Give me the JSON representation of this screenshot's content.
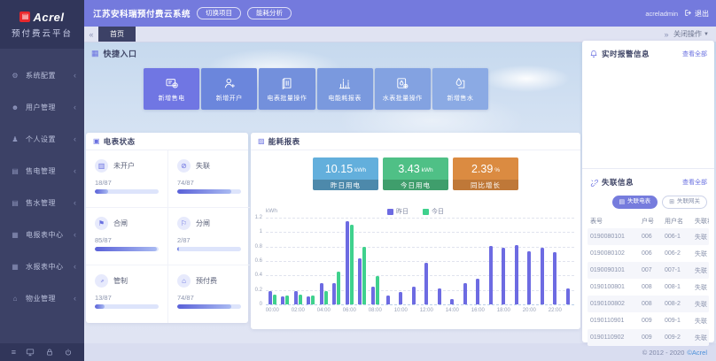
{
  "brand": {
    "logo_text": "Acrel",
    "platform_name": "预付费云平台",
    "logo_color": "#e8282d"
  },
  "header": {
    "system_title": "江苏安科瑞预付费云系统",
    "buttons": [
      {
        "label": "切换项目"
      },
      {
        "label": "能耗分析"
      }
    ],
    "username": "acreladmin",
    "logout_label": "退出"
  },
  "tabs": {
    "active": "首页",
    "right_action": "关闭操作"
  },
  "sidebar": {
    "items": [
      {
        "label": "系统配置",
        "icon": "gear-icon"
      },
      {
        "label": "用户管理",
        "icon": "user-icon"
      },
      {
        "label": "个人设置",
        "icon": "person-icon"
      },
      {
        "label": "售电管理",
        "icon": "card-icon"
      },
      {
        "label": "售水管理",
        "icon": "card-icon"
      },
      {
        "label": "电报表中心",
        "icon": "grid-icon"
      },
      {
        "label": "水报表中心",
        "icon": "grid-icon"
      },
      {
        "label": "物业管理",
        "icon": "building-icon"
      }
    ]
  },
  "quick_entry": {
    "title": "快捷入口",
    "tiles": [
      {
        "label": "新增售电",
        "color": "#7076e3",
        "icon": "meter-plus-icon"
      },
      {
        "label": "新增开户",
        "color": "#6b86dc",
        "icon": "user-plus-icon"
      },
      {
        "label": "电表批量操作",
        "color": "#7390dc",
        "icon": "meter-batch-icon"
      },
      {
        "label": "电能耗报表",
        "color": "#7a99de",
        "icon": "chart-bars-icon"
      },
      {
        "label": "水表批量操作",
        "color": "#83a2e1",
        "icon": "water-batch-icon"
      },
      {
        "label": "新增售水",
        "color": "#8baae4",
        "icon": "droplet-icon"
      }
    ]
  },
  "meter_status": {
    "title": "电表状态",
    "total": 87,
    "tiles": [
      {
        "label": "未开户",
        "value": 18,
        "display": "18/87",
        "icon": "meter-icon"
      },
      {
        "label": "失联",
        "value": 74,
        "display": "74/87",
        "icon": "offline-icon"
      },
      {
        "label": "合闸",
        "value": 85,
        "display": "85/87",
        "icon": "switch-on-icon"
      },
      {
        "label": "分闸",
        "value": 2,
        "display": "2/87",
        "icon": "switch-off-icon"
      },
      {
        "label": "管制",
        "value": 13,
        "display": "13/87",
        "icon": "key-icon"
      },
      {
        "label": "预付费",
        "value": 74,
        "display": "74/87",
        "icon": "prepaid-icon"
      }
    ]
  },
  "energy": {
    "title": "能耗报表",
    "stats": [
      {
        "value": "10.15",
        "unit": "kWh",
        "label": "昨日用电",
        "color": "#63afdc",
        "band": "#4d89ab"
      },
      {
        "value": "3.43",
        "unit": "kWh",
        "label": "今日用电",
        "color": "#4fc086",
        "band": "#3f9e6c"
      },
      {
        "value": "2.39",
        "unit": "%",
        "label": "同比增长",
        "color": "#db8b41",
        "band": "#bf7838"
      }
    ]
  },
  "chart_data": {
    "type": "bar",
    "title": "能耗报表",
    "ylabel": "kWh",
    "ylim": [
      0,
      1.2
    ],
    "yticks": [
      0,
      0.2,
      0.4,
      0.6,
      0.8,
      1,
      1.2
    ],
    "x": [
      "00:00",
      "01:00",
      "02:00",
      "03:00",
      "04:00",
      "05:00",
      "06:00",
      "07:00",
      "08:00",
      "09:00",
      "10:00",
      "11:00",
      "12:00",
      "13:00",
      "14:00",
      "15:00",
      "16:00",
      "17:00",
      "18:00",
      "19:00",
      "20:00",
      "21:00",
      "22:00",
      "23:00"
    ],
    "x_tick_every": 2,
    "legend_position": "top",
    "grid": true,
    "series": [
      {
        "name": "昨日",
        "color": "#6d6be2",
        "values": [
          0.18,
          0.11,
          0.19,
          0.11,
          0.3,
          0.3,
          1.15,
          0.64,
          0.25,
          0.12,
          0.17,
          0.24,
          0.58,
          0.22,
          0.07,
          0.3,
          0.36,
          0.81,
          0.78,
          0.82,
          0.73,
          0.78,
          0.72,
          0.22
        ]
      },
      {
        "name": "今日",
        "color": "#3fd18d",
        "values": [
          0.13,
          0.12,
          0.14,
          0.12,
          0.18,
          0.45,
          1.1,
          0.8,
          0.39,
          0,
          0,
          0,
          0,
          0,
          0,
          0,
          0,
          0,
          0,
          0,
          0,
          0,
          0,
          0
        ]
      }
    ]
  },
  "alarm_panel": {
    "title": "实时报警信息",
    "view_all": "查看全部"
  },
  "offline_panel": {
    "title": "失联信息",
    "view_all": "查看全部",
    "buttons": [
      {
        "label": "失联电表",
        "active": true
      },
      {
        "label": "失联网关",
        "active": false
      }
    ],
    "table": {
      "columns": [
        "表号",
        "户号",
        "用户名",
        "失联状态"
      ],
      "rows": [
        [
          "0190080101",
          "006",
          "006-1",
          "失联"
        ],
        [
          "0190080102",
          "006",
          "006-2",
          "失联"
        ],
        [
          "0190090101",
          "007",
          "007-1",
          "失联"
        ],
        [
          "0190100801",
          "008",
          "008-1",
          "失联"
        ],
        [
          "0190100802",
          "008",
          "008-2",
          "失联"
        ],
        [
          "0190110901",
          "009",
          "009-1",
          "失联"
        ],
        [
          "0190110902",
          "009",
          "009-2",
          "失联"
        ]
      ]
    }
  },
  "footer": {
    "copyright_prefix": "© 2012 - 2020",
    "copyright_brand": "©Acrel"
  }
}
